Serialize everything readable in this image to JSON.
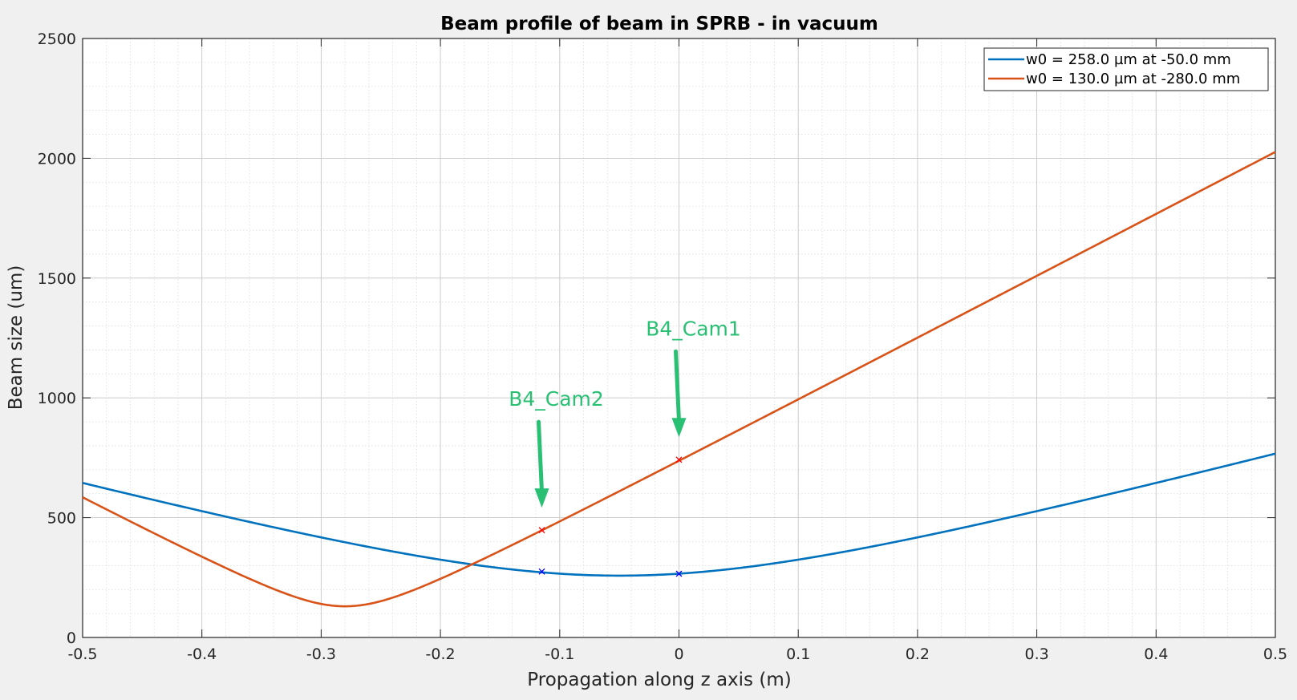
{
  "chart_data": {
    "type": "line",
    "title": "Beam profile of beam in SPRB - in vacuum",
    "xlabel": "Propagation along z axis (m)",
    "ylabel": "Beam size (um)",
    "xlim": [
      -0.5,
      0.5
    ],
    "ylim": [
      0,
      2500
    ],
    "xticks": [
      -0.5,
      -0.4,
      -0.3,
      -0.2,
      -0.1,
      0,
      0.1,
      0.2,
      0.3,
      0.4,
      0.5
    ],
    "xtick_labels": [
      "-0.5",
      "-0.4",
      "-0.3",
      "-0.2",
      "-0.1",
      "0",
      "0.1",
      "0.2",
      "0.3",
      "0.4",
      "0.5"
    ],
    "yticks": [
      0,
      500,
      1000,
      1500,
      2000,
      2500
    ],
    "ytick_labels": [
      "0",
      "500",
      "1000",
      "1500",
      "2000",
      "2500"
    ],
    "grid": true,
    "minor_grid": true,
    "legend_position": "top-right",
    "series": [
      {
        "name": "w0 = 258.0 µm at -50.0 mm",
        "color": "#0072bd",
        "waist_um": 258.0,
        "waist_z_m": -0.05,
        "x": [
          -0.5,
          -0.45,
          -0.4,
          -0.35,
          -0.3,
          -0.25,
          -0.2,
          -0.15,
          -0.1,
          -0.05,
          0,
          0.05,
          0.1,
          0.15,
          0.2,
          0.25,
          0.3,
          0.35,
          0.4,
          0.45,
          0.5
        ],
        "y": [
          645,
          586,
          529,
          472,
          417,
          367,
          322,
          287,
          266,
          258,
          266,
          287,
          322,
          367,
          417,
          472,
          529,
          586,
          645,
          705,
          766
        ],
        "markers": [
          {
            "x": -0.115,
            "y": 275
          },
          {
            "x": 0.0,
            "y": 266
          }
        ]
      },
      {
        "name": "w0 = 130.0 µm at -280.0 mm",
        "color": "#d95319",
        "waist_um": 130.0,
        "waist_z_m": -0.28,
        "x": [
          -0.5,
          -0.45,
          -0.4,
          -0.35,
          -0.3,
          -0.28,
          -0.25,
          -0.2,
          -0.15,
          -0.1,
          -0.05,
          0,
          0.05,
          0.1,
          0.15,
          0.2,
          0.25,
          0.3,
          0.35,
          0.4,
          0.45,
          0.5
        ],
        "y": [
          585,
          451,
          322,
          201,
          137,
          130,
          152,
          256,
          381,
          512,
          645,
          742,
          870,
          1000,
          1130,
          1260,
          1390,
          1520,
          1650,
          1780,
          1910,
          2035
        ],
        "markers": [
          {
            "x": -0.115,
            "y": 448
          },
          {
            "x": 0.0,
            "y": 742
          }
        ]
      }
    ],
    "annotations": [
      {
        "text": "B4_Cam1",
        "x": 0.0,
        "y": 742,
        "color": "#2ac074"
      },
      {
        "text": "B4_Cam2",
        "x": -0.115,
        "y": 448,
        "color": "#2ac074"
      }
    ]
  }
}
